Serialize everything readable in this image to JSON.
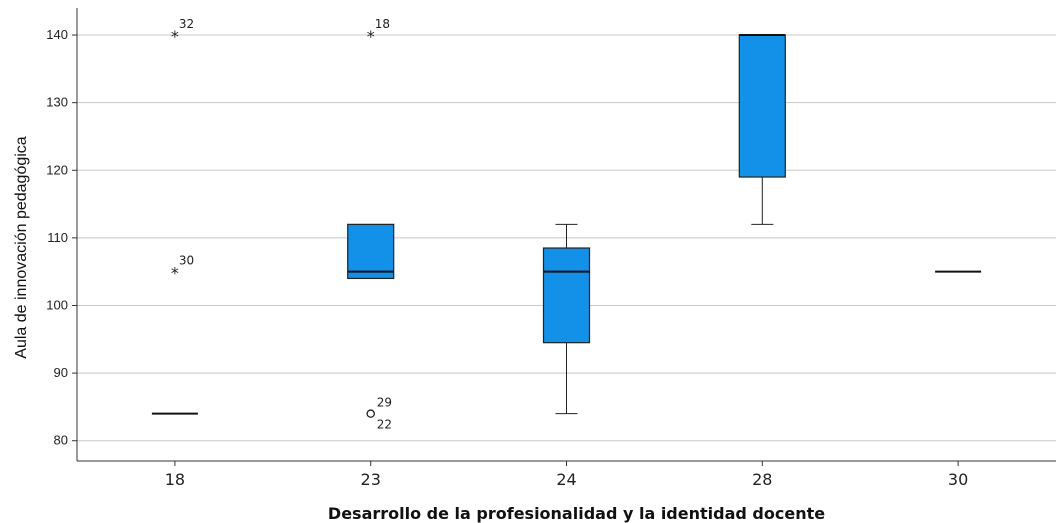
{
  "chart_data": {
    "type": "box",
    "xlabel": "Desarrollo de la profesionalidad y la identidad docente",
    "ylabel": "Aula de innovación pedagógica",
    "ylim": [
      77,
      144
    ],
    "yticks": [
      80,
      90,
      100,
      110,
      120,
      130,
      140
    ],
    "grid": true,
    "box_color": "#1390e8",
    "categories": [
      "18",
      "23",
      "24",
      "28",
      "30"
    ],
    "boxes": [
      {
        "category": "18",
        "q1": 84,
        "median": 84,
        "q3": 84,
        "whisker_low": 84,
        "whisker_high": 84,
        "outliers": [
          {
            "value": 140,
            "label": "32",
            "marker": "star"
          },
          {
            "value": 105,
            "label": "30",
            "marker": "star"
          }
        ]
      },
      {
        "category": "23",
        "q1": 104,
        "median": 105,
        "q3": 112,
        "whisker_low": 104,
        "whisker_high": 112,
        "outliers": [
          {
            "value": 140,
            "label": "18",
            "marker": "star"
          },
          {
            "value": 84,
            "label": "29",
            "marker": "circle"
          },
          {
            "value": 84,
            "label": "22",
            "marker": "circle"
          }
        ]
      },
      {
        "category": "24",
        "q1": 94.5,
        "median": 105,
        "q3": 108.5,
        "whisker_low": 84,
        "whisker_high": 112,
        "outliers": []
      },
      {
        "category": "28",
        "q1": 119,
        "median": 140,
        "q3": 140,
        "whisker_low": 112,
        "whisker_high": 140,
        "outliers": []
      },
      {
        "category": "30",
        "q1": 105,
        "median": 105,
        "q3": 105,
        "whisker_low": 105,
        "whisker_high": 105,
        "outliers": []
      }
    ]
  }
}
